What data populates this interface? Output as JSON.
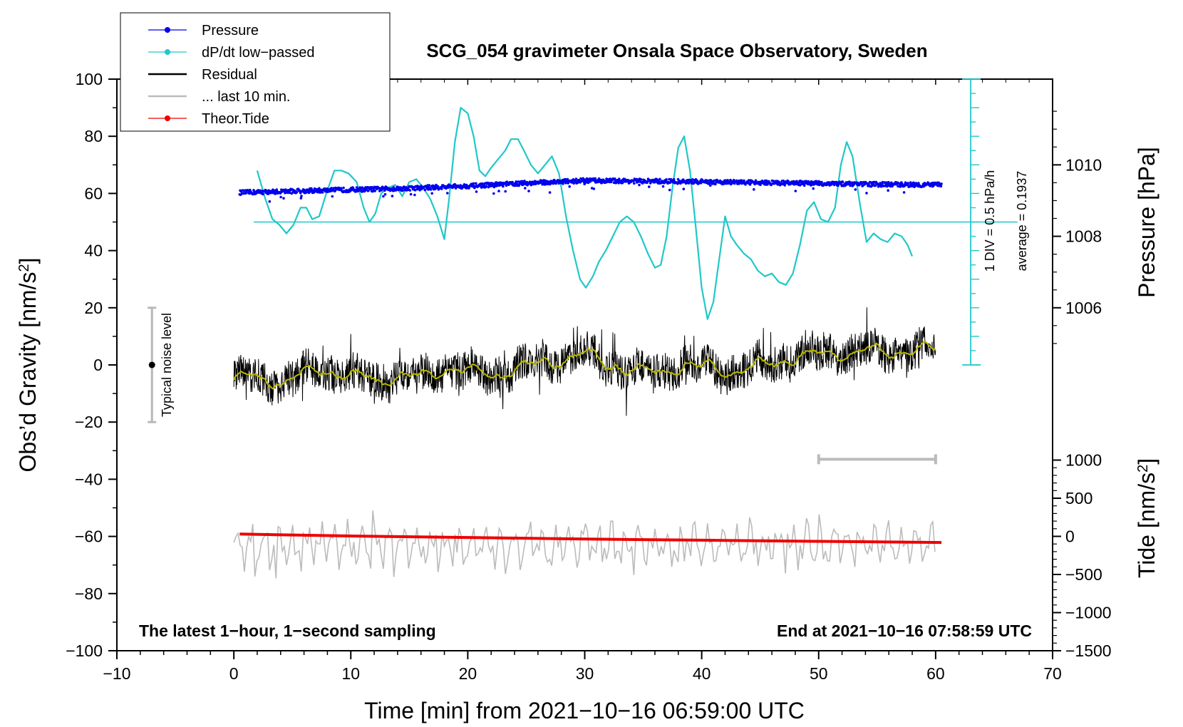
{
  "chart_data": {
    "type": "line",
    "title": "SCG_054 gravimeter Onsala Space Observatory, Sweden",
    "xlabel": "Time [min] from 2021−10−16 06:59:00 UTC",
    "ylabel_main": "Obs’d Gravity [nm/s",
    "ylabel_main_sup": "2",
    "ylabel_main_end": "]",
    "ylabel_pressure": "Pressure [hPa]",
    "ylabel_tide": "Tide [nm/s",
    "ylabel_tide_sup": "2",
    "ylabel_tide_end": "]",
    "xlim": [
      -10,
      70
    ],
    "ylim": [
      -100,
      100
    ],
    "x_ticks": [
      -10,
      0,
      10,
      20,
      30,
      40,
      50,
      60,
      70
    ],
    "x_tick_labels": [
      "−10",
      "0",
      "10",
      "20",
      "30",
      "40",
      "50",
      "60",
      "70"
    ],
    "y_ticks": [
      -100,
      -80,
      -60,
      -40,
      -20,
      0,
      20,
      40,
      60,
      80,
      100
    ],
    "y_tick_labels": [
      "−100",
      "−80",
      "−60",
      "−40",
      "−20",
      "0",
      "20",
      "40",
      "60",
      "80",
      "100"
    ],
    "pressure_axis": {
      "ticks_hpa": [
        1006,
        1008,
        1010
      ],
      "tick_labels": [
        "1006",
        "1008",
        "1010"
      ],
      "map": {
        "hpa": [
          1006,
          1008
        ],
        "y": [
          20,
          45
        ]
      }
    },
    "tide_axis": {
      "ticks": [
        -1500,
        -1000,
        -500,
        0,
        500,
        1000
      ],
      "tick_labels": [
        "−1500",
        "−1000",
        "−500",
        "0",
        "500",
        "1000"
      ],
      "map": {
        "tide": [
          -1500,
          1000
        ],
        "y": [
          -100,
          -33.3
        ]
      }
    },
    "legend": [
      {
        "label": "Pressure",
        "color": "#0000ee",
        "marker": true
      },
      {
        "label": "dP/dt low−passed",
        "color": "#20c8c8",
        "marker": true
      },
      {
        "label": "Residual",
        "color": "#000000",
        "marker": false
      },
      {
        "label": "... last 10 min.",
        "color": "#bbbbbb",
        "marker": false
      },
      {
        "label": "Theor.Tide",
        "color": "#ee0000",
        "marker": true
      }
    ],
    "colors": {
      "pressure": "#0000ee",
      "dpdt": "#20c8c8",
      "residual": "#000000",
      "residual_smooth": "#b8b800",
      "last10": "#bbbbbb",
      "tide": "#ee0000"
    },
    "dpdt_axis": {
      "baseline_y": 50,
      "top_y": 100,
      "bottom_y": 0,
      "x": 63,
      "division_note": "1 DIV = 0.5 hPa/h",
      "average_note": "average = 0.1937"
    },
    "noise_level": {
      "x": -7,
      "center": 0,
      "low": -20,
      "high": 20,
      "label": "Typical noise level"
    },
    "last10_bar": {
      "x_start": 50,
      "x_end": 60,
      "y": -33
    },
    "dpdt_series": {
      "x": [
        2,
        2.7,
        3.3,
        3.9,
        4.5,
        5.1,
        5.7,
        6.2,
        6.7,
        7.3,
        7.9,
        8.6,
        9.2,
        9.8,
        10.5,
        11.1,
        11.6,
        12.1,
        12.6,
        13.2,
        13.8,
        14.4,
        15.0,
        15.6,
        16.2,
        16.8,
        17.4,
        18.0,
        18.4,
        18.9,
        19.4,
        20.0,
        20.5,
        21.0,
        21.5,
        22.0,
        22.6,
        23.2,
        23.7,
        24.3,
        24.8,
        25.4,
        26.0,
        26.6,
        27.2,
        27.8,
        28.4,
        29.0,
        29.6,
        30.1,
        30.7,
        31.2,
        31.8,
        32.4,
        33.0,
        33.6,
        34.2,
        34.8,
        35.4,
        36.0,
        36.5,
        37.0,
        37.5,
        38.0,
        38.5,
        39.0,
        39.5,
        40.0,
        40.5,
        41.0,
        41.5,
        42.0,
        42.5,
        43.0,
        43.6,
        44.2,
        44.8,
        45.4,
        46.0,
        46.6,
        47.2,
        47.8,
        48.4,
        49.0,
        49.6,
        50.2,
        50.8,
        51.4,
        51.9,
        52.4,
        52.9,
        53.5,
        54.1,
        54.7,
        55.3,
        55.9,
        56.5,
        57.1,
        57.6,
        58.0
      ],
      "y": [
        68,
        58,
        51,
        49,
        46,
        49,
        55,
        55,
        51,
        52,
        60,
        68,
        68,
        67,
        64,
        55,
        50,
        53,
        60,
        62,
        63,
        59,
        64,
        65,
        62,
        58,
        52,
        44,
        58,
        78,
        90,
        88,
        80,
        68,
        66,
        69,
        72,
        75,
        79,
        79,
        75,
        70,
        67,
        70,
        73,
        67,
        52,
        40,
        30,
        27,
        31,
        36,
        40,
        45,
        50,
        52,
        50,
        45,
        39,
        34,
        35,
        45,
        62,
        76,
        80,
        68,
        48,
        27,
        16,
        22,
        37,
        52,
        45,
        42,
        39,
        37,
        33,
        31,
        32,
        29,
        28,
        32,
        42,
        54,
        57,
        51,
        50,
        55,
        70,
        78,
        73,
        57,
        43,
        46,
        44,
        43,
        46,
        45,
        42,
        38
      ]
    },
    "pressure_series": {
      "x": [
        0.5,
        5,
        10,
        15,
        20,
        25,
        30,
        35,
        40,
        45,
        50,
        55,
        60.5
      ],
      "y": [
        60.3,
        60.8,
        61.3,
        61.8,
        62.6,
        63.6,
        64.5,
        64.3,
        64.1,
        63.8,
        63.5,
        63.2,
        63.0
      ],
      "noise": 0.8
    },
    "residual_series": {
      "x": [
        0,
        2,
        4,
        6,
        8,
        10,
        12,
        14,
        16,
        18,
        20,
        22,
        24,
        26,
        28,
        30,
        32,
        34,
        36,
        38,
        40,
        42,
        44,
        46,
        48,
        50,
        52,
        54,
        56,
        58,
        60
      ],
      "y": [
        -4,
        -5,
        -6,
        -3,
        -2,
        -4,
        -6,
        -3,
        -5,
        -1,
        -2,
        -4,
        -1,
        0,
        2,
        4,
        0,
        -2,
        -3,
        0,
        -1,
        -2,
        -1,
        1,
        3,
        4,
        4,
        5,
        4,
        5,
        5
      ],
      "noise": 6.5
    },
    "tide_series": {
      "x": [
        0.5,
        10,
        20,
        30,
        40,
        50,
        60.5
      ],
      "tide": [
        30,
        5,
        -15,
        -35,
        -50,
        -65,
        -80
      ]
    },
    "last10_series": {
      "x_start": 0,
      "x_end": 60,
      "center_y": -63,
      "amp": 5,
      "noise": 3.5
    },
    "footer_left": "The latest 1−hour, 1−second sampling",
    "footer_right": "End at 2021−10−16 07:58:59 UTC"
  }
}
